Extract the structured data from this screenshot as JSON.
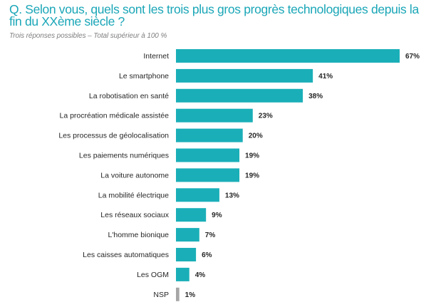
{
  "header": {
    "title": "Q. Selon vous, quels sont les trois plus gros progrès technologiques depuis la fin du XXème siècle ?",
    "subtitle": "Trois réponses possibles – Total supérieur à 100 %"
  },
  "colors": {
    "title": "#1aa6b7",
    "bar": "#1aafb8",
    "bar_nsp": "#a6a6a6"
  },
  "chart_data": {
    "type": "bar",
    "orientation": "horizontal",
    "title": "Q. Selon vous, quels sont les trois plus gros progrès technologiques depuis la fin du XXème siècle ?",
    "subtitle": "Trois réponses possibles – Total supérieur à 100 %",
    "xlabel": "",
    "ylabel": "",
    "unit": "%",
    "xlim": [
      0,
      67
    ],
    "grid": false,
    "legend": "none",
    "categories": [
      "Internet",
      "Le smartphone",
      "La robotisation en santé",
      "La procréation médicale assistée",
      "Les processus de géolocalisation",
      "Les paiements numériques",
      "La voiture autonome",
      "La mobilité électrique",
      "Les réseaux sociaux",
      "L'homme bionique",
      "Les caisses automatiques",
      "Les OGM",
      "NSP"
    ],
    "values": [
      67,
      41,
      38,
      23,
      20,
      19,
      19,
      13,
      9,
      7,
      6,
      4,
      1
    ],
    "value_labels": [
      "67%",
      "41%",
      "38%",
      "23%",
      "20%",
      "19%",
      "19%",
      "13%",
      "9%",
      "7%",
      "6%",
      "4%",
      "1%"
    ],
    "highlight": {
      "NSP": "#a6a6a6"
    }
  }
}
